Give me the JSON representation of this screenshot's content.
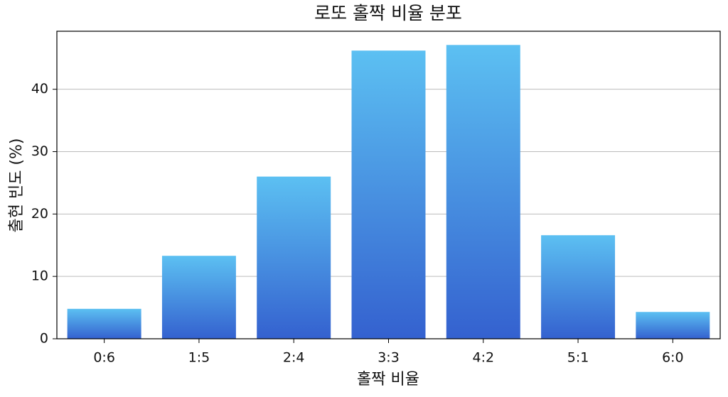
{
  "chart_data": {
    "type": "bar",
    "title": "로또 홀짝 비율 분포",
    "x_label": "홀짝 비율",
    "y_label": "출현 빈도 (%)",
    "categories": [
      "0:6",
      "1:5",
      "2:4",
      "3:3",
      "4:2",
      "5:1",
      "6:0"
    ],
    "values": [
      4.8,
      13.3,
      26.0,
      46.2,
      47.1,
      16.6,
      4.3
    ],
    "gradient": [
      "#5cc0f2",
      "#3461cf"
    ],
    "ylim": [
      0,
      49.3
    ],
    "yticks": [
      0,
      10,
      20,
      30,
      40
    ],
    "grid": true
  }
}
